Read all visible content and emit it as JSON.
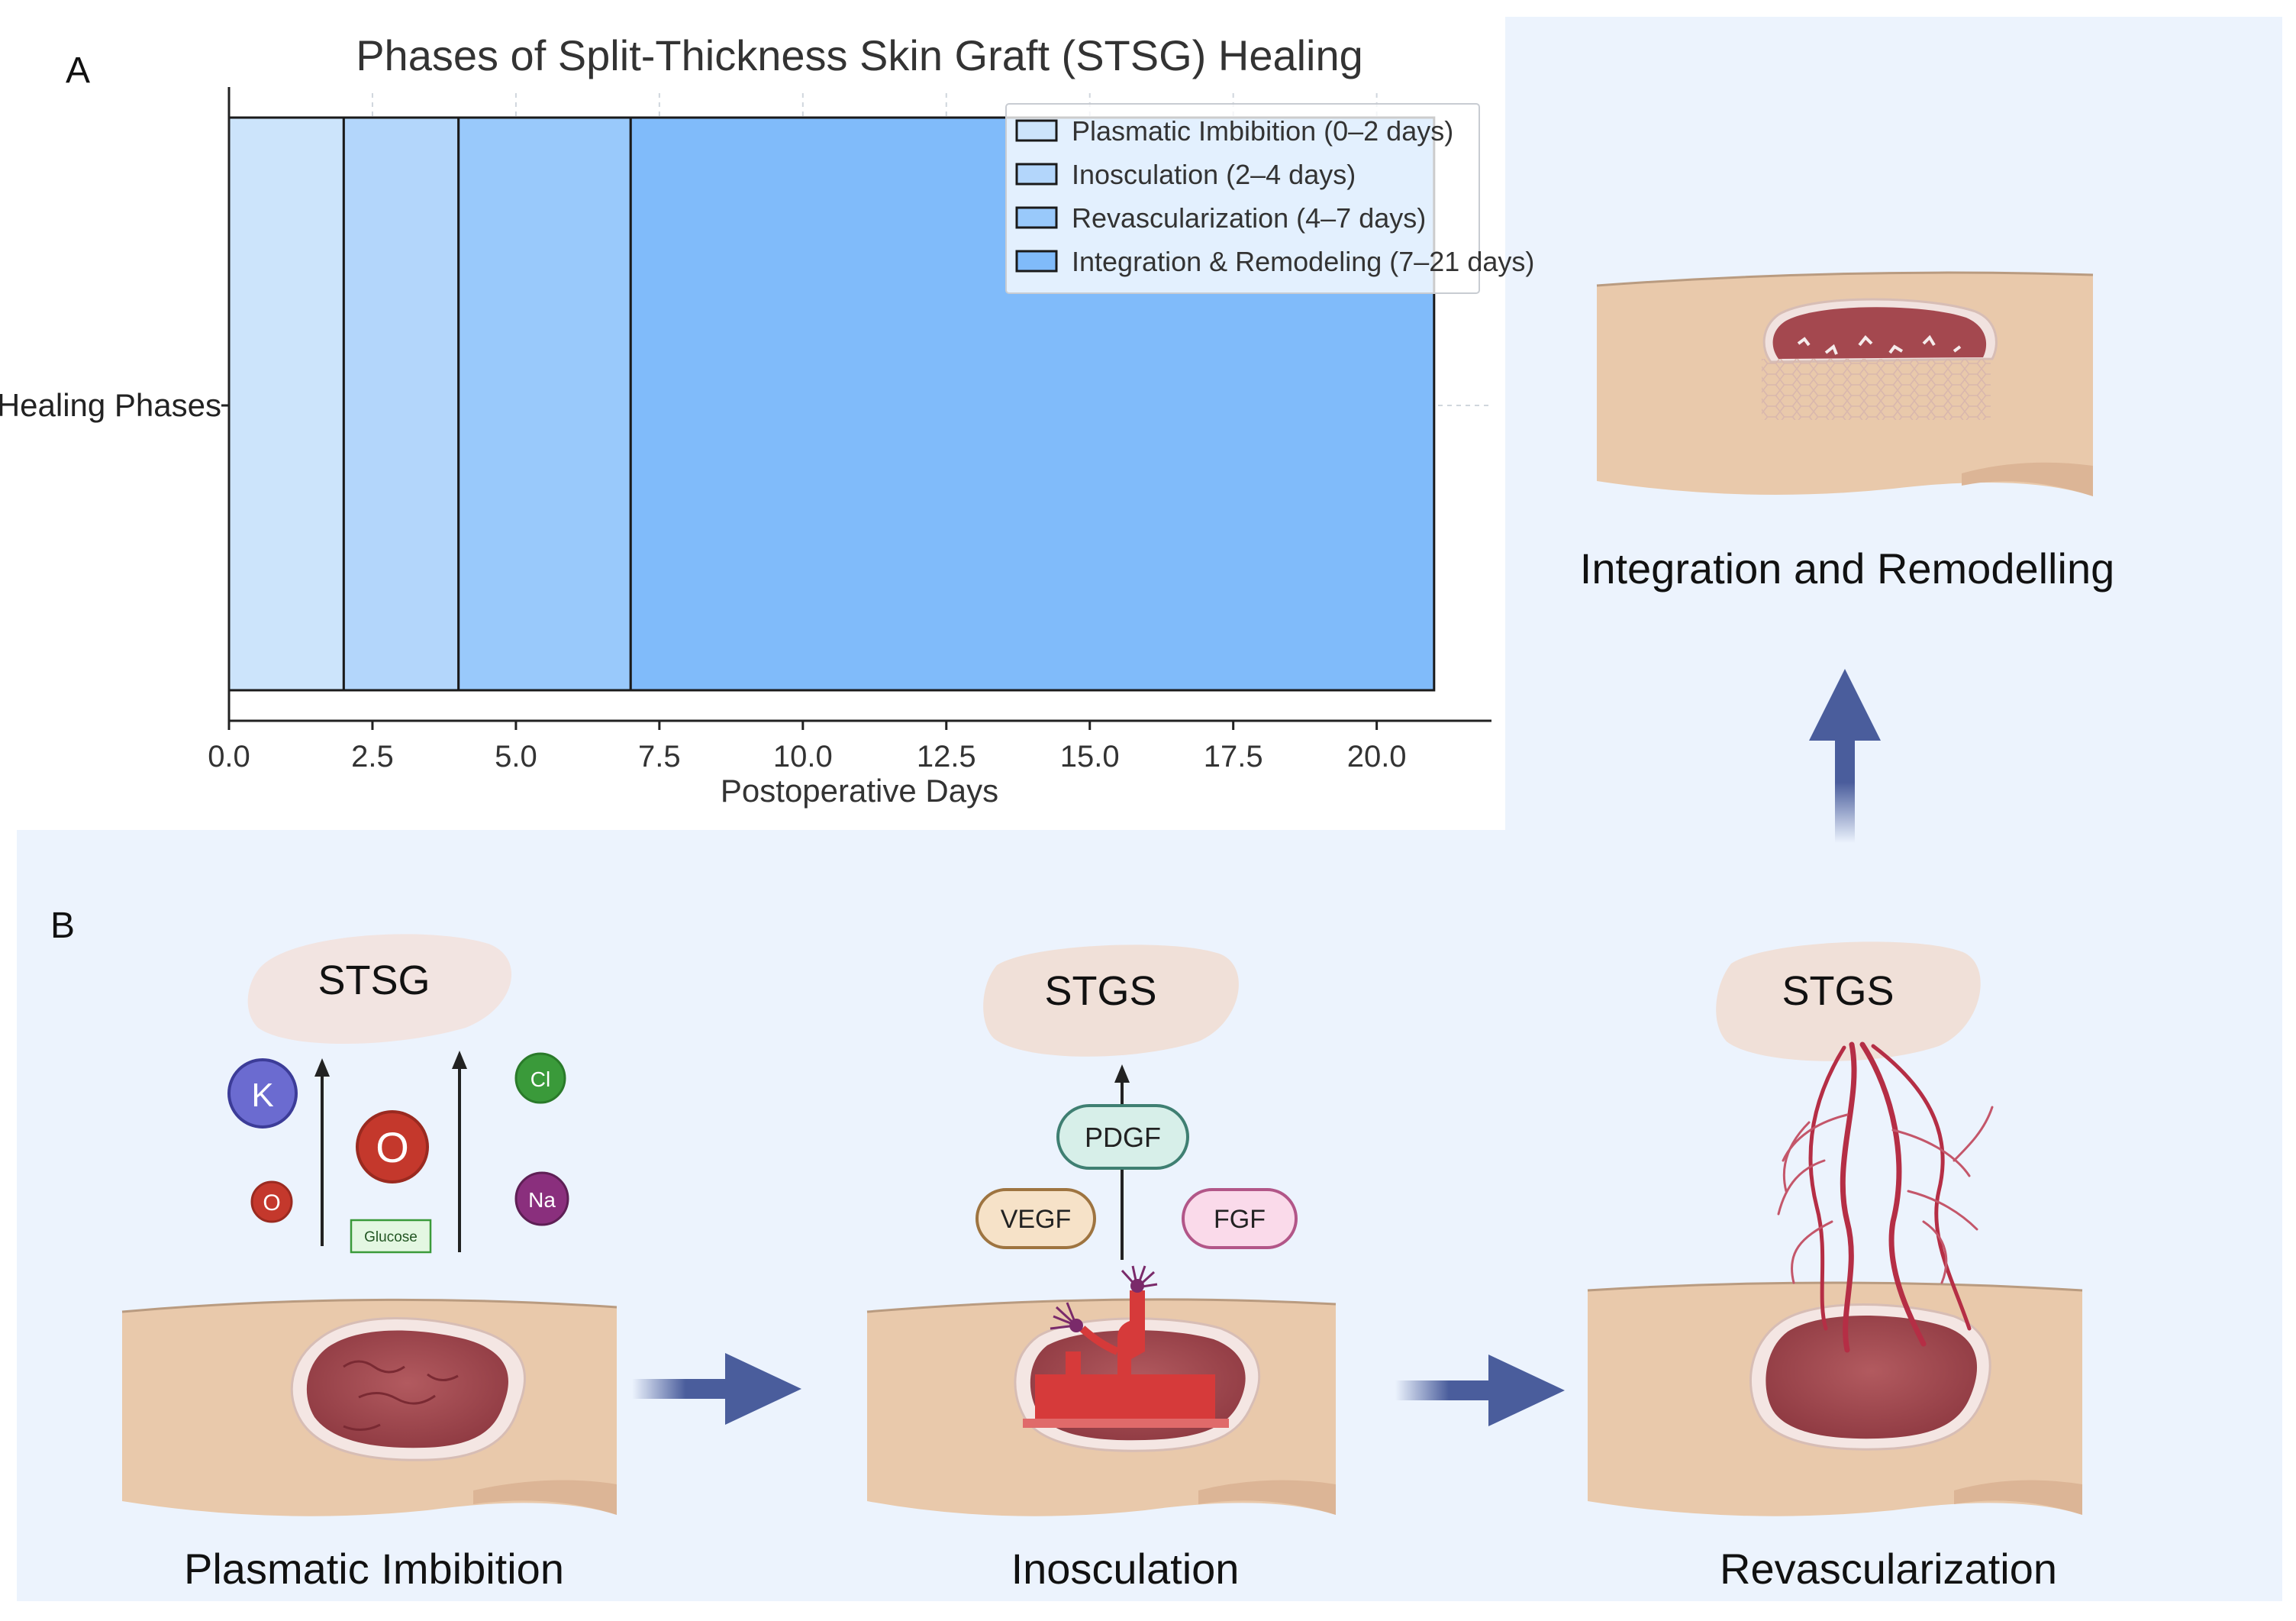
{
  "panel_a": {
    "label": "A",
    "chart_data": {
      "type": "bar",
      "orientation": "horizontal-stacked",
      "title": "Phases of Split-Thickness Skin Graft (STSG) Healing",
      "xlabel": "Postoperative Days",
      "ylabel": "",
      "category": "Healing Phases",
      "xlim": [
        0,
        22
      ],
      "xticks": [
        "0.0",
        "2.5",
        "5.0",
        "7.5",
        "10.0",
        "12.5",
        "15.0",
        "17.5",
        "20.0"
      ],
      "grid": true,
      "legend_position": "top-right",
      "series": [
        {
          "name": "Plasmatic Imbibition (0–2 days)",
          "start": 0,
          "end": 2,
          "color": "#cce4fb"
        },
        {
          "name": "Inosculation (2–4 days)",
          "start": 2,
          "end": 4,
          "color": "#b3d6fb"
        },
        {
          "name": "Revascularization (4–7 days)",
          "start": 4,
          "end": 7,
          "color": "#99c9fb"
        },
        {
          "name": "Integration & Remodeling (7–21 days)",
          "start": 7,
          "end": 21,
          "color": "#80bbfa"
        }
      ]
    }
  },
  "panel_b": {
    "label": "B",
    "colors": {
      "background": "#ecf3fd",
      "arrow": "#4a5d9c",
      "skin": "#e9c9ab",
      "wound": "#a4484f",
      "vessel": "#b52e45"
    },
    "stage1": {
      "caption": "Plasmatic Imbibition",
      "graft_label": "STSG",
      "molecules": {
        "k": "K",
        "o_large": "O",
        "o_small": "O",
        "cl": "Cl",
        "na": "Na",
        "glucose": "Glucose"
      }
    },
    "stage2": {
      "caption": "Inosculation",
      "graft_label": "STGS",
      "factors": {
        "pdgf": "PDGF",
        "vegf": "VEGF",
        "fgf": "FGF"
      }
    },
    "stage3": {
      "caption": "Revascularization",
      "graft_label": "STGS"
    },
    "stage4": {
      "caption": "Integration and Remodelling"
    }
  }
}
